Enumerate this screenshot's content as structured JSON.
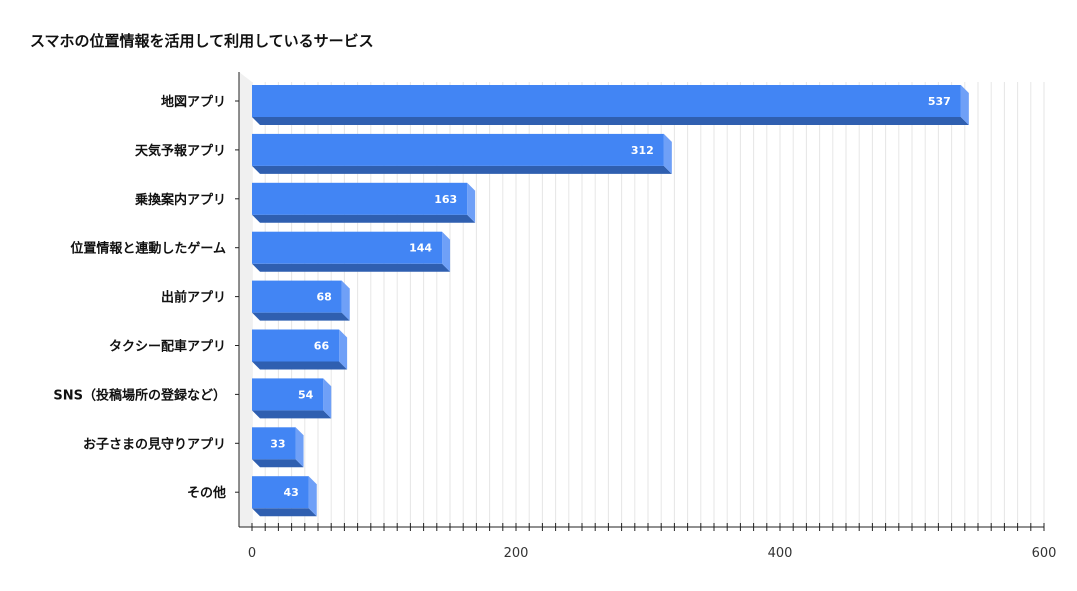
{
  "chart_data": {
    "type": "bar",
    "orientation": "horizontal",
    "title": "スマホの位置情報を活用して利用しているサービス",
    "xlabel": "",
    "ylabel": "",
    "categories": [
      "地図アプリ",
      "天気予報アプリ",
      "乗換案内アプリ",
      "位置情報と連動したゲーム",
      "出前アプリ",
      "タクシー配車アプリ",
      "SNS（投稿場所の登録など）",
      "お子さまの見守りアプリ",
      "その他"
    ],
    "values": [
      537,
      312,
      163,
      144,
      68,
      66,
      54,
      33,
      43
    ],
    "xlim": [
      0,
      600
    ],
    "xticks": [
      0,
      200,
      400,
      600
    ],
    "grid": true,
    "legend": "none",
    "data_labels": true,
    "colors": {
      "bar_front": "#4285F4",
      "bar_side": "#6FA0F7",
      "bar_bottom": "#2F5FB0",
      "label": "#ffffff",
      "grid": "#e6e6e6",
      "axis": "#222222"
    }
  }
}
